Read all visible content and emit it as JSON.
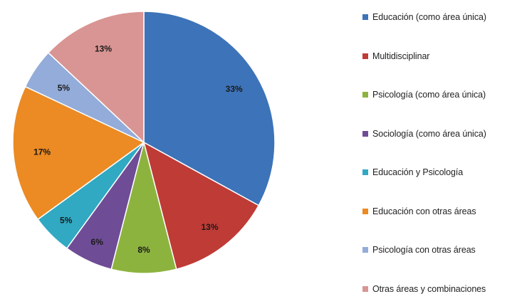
{
  "chart_data": {
    "type": "pie",
    "title": "",
    "categories": [
      "Educación (como área única)",
      "Multidisciplinar",
      "Psicología  (como área única)",
      "Sociología (como área única)",
      "Educación y Psicología",
      "Educación con otras áreas",
      "Psicología con otras áreas",
      "Otras áreas y combinaciones"
    ],
    "values": [
      33,
      13,
      8,
      6,
      5,
      17,
      5,
      13
    ],
    "labels": [
      "33%",
      "13%",
      "8%",
      "6%",
      "5%",
      "17%",
      "5%",
      "13%"
    ],
    "colors": [
      "#3d73b8",
      "#bf3b36",
      "#8db33f",
      "#6f4c96",
      "#31a9c2",
      "#ec8a23",
      "#93acd9",
      "#d99593"
    ],
    "start_angle_deg": 0,
    "direction": "clockwise",
    "legend_position": "right"
  }
}
